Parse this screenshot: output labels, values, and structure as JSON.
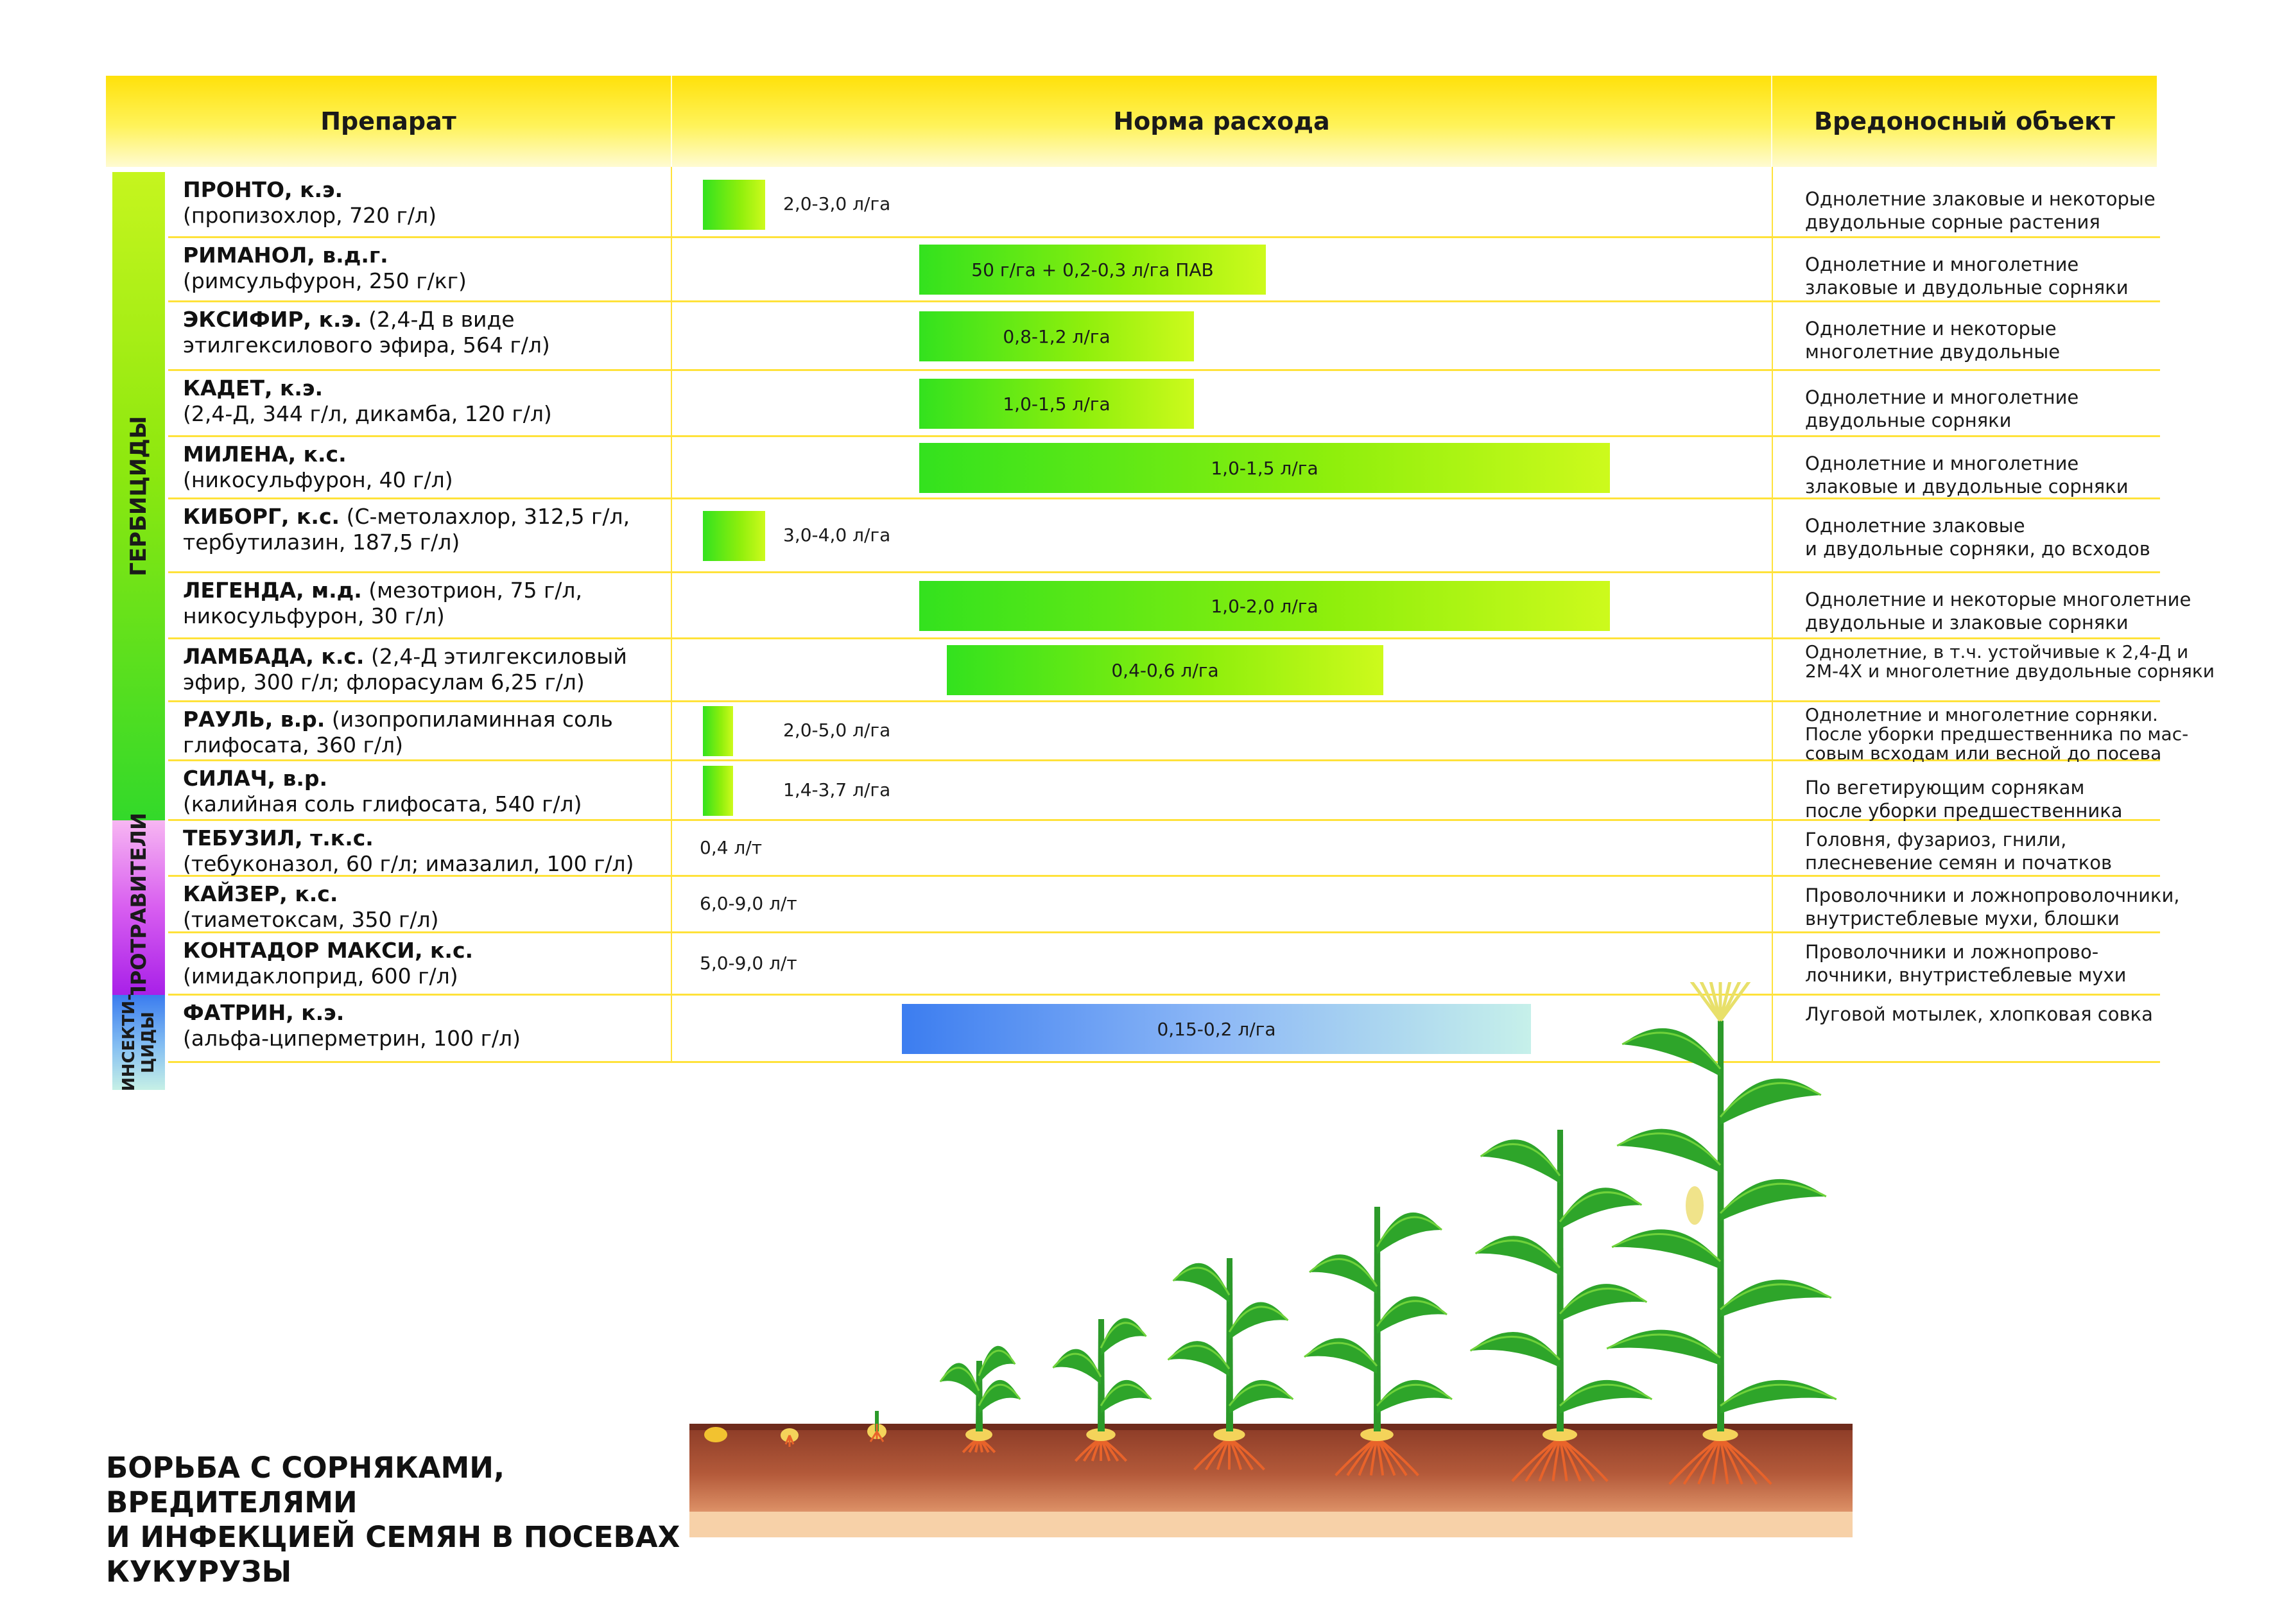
{
  "header": {
    "col_drug": "Препарат",
    "col_rate": "Норма расхода",
    "col_target": "Вредоносный объект"
  },
  "categories": {
    "herbicides": "ГЕРБИЦИДЫ",
    "seed_treatments": "ПРОТРАВИТЕЛИ",
    "insecticides_line1": "ИНСЕКТИ-",
    "insecticides_line2": "ЦИДЫ"
  },
  "colors": {
    "header_yellow": "#ffe10a",
    "herbicides": "#8ee80f",
    "seed_treatments": "#c040f0",
    "insecticides": "#4a8ef2",
    "grid": "#ffe23a"
  },
  "rows": [
    {
      "name": "ПРОНТО, к.э.",
      "detail": "",
      "line2": "(пропизохлор, 720 г/л)",
      "rate": "2,0-3,0 л/га",
      "rate_min": 2.0,
      "rate_max": 3.0,
      "target": [
        "Однолетние злаковые и некоторые",
        "двудольные сорные растения"
      ]
    },
    {
      "name": "РИМАНОЛ, в.д.г.",
      "detail": "",
      "line2": "(римсульфурон, 250 г/кг)",
      "rate": "50 г/га + 0,2-0,3 л/га ПАВ",
      "target": [
        "Однолетние и многолетние",
        "злаковые и двудольные сорняки"
      ]
    },
    {
      "name": "ЭКСИФИР, к.э.",
      "detail": " (2,4-Д в виде",
      "line2": "этилгексилового эфира, 564 г/л)",
      "rate": "0,8-1,2 л/га",
      "rate_min": 0.8,
      "rate_max": 1.2,
      "target": [
        "Однолетние и некоторые",
        "многолетние двудольные"
      ]
    },
    {
      "name": "КАДЕТ, к.э.",
      "detail": "",
      "line2": "(2,4-Д, 344 г/л, дикамба, 120 г/л)",
      "rate": "1,0-1,5 л/га",
      "rate_min": 1.0,
      "rate_max": 1.5,
      "target": [
        "Однолетние и многолетние",
        "двудольные сорняки"
      ]
    },
    {
      "name": "МИЛЕНА, к.с.",
      "detail": "",
      "line2": "(никосульфурон, 40 г/л)",
      "rate": "1,0-1,5 л/га",
      "rate_min": 1.0,
      "rate_max": 1.5,
      "target": [
        "Однолетние и многолетние",
        "злаковые и двудольные сорняки"
      ]
    },
    {
      "name": "КИБОРГ, к.с.",
      "detail": " (С-метолахлор, 312,5 г/л,",
      "line2": "тербутилазин, 187,5 г/л)",
      "rate": "3,0-4,0 л/га",
      "rate_min": 3.0,
      "rate_max": 4.0,
      "target": [
        "Однолетние злаковые",
        "и двудольные сорняки, до всходов"
      ]
    },
    {
      "name": "ЛЕГЕНДА, м.д.",
      "detail": " (мезотрион, 75 г/л,",
      "line2": "никосульфурон, 30 г/л)",
      "rate": "1,0-2,0 л/га",
      "rate_min": 1.0,
      "rate_max": 2.0,
      "target": [
        "Однолетние и некоторые многолетние",
        "двудольные и злаковые сорняки"
      ]
    },
    {
      "name": "ЛАМБАДА, к.с.",
      "detail": " (2,4-Д этилгексиловый",
      "line2": "эфир, 300 г/л; флорасулам 6,25 г/л)",
      "rate": "0,4-0,6 л/га",
      "rate_min": 0.4,
      "rate_max": 0.6,
      "target": [
        "Однолетние, в т.ч. устойчивые к  2,4-Д и",
        "2М-4Х и многолетние двудольные сорняки"
      ]
    },
    {
      "name": "РАУЛЬ, в.р.",
      "detail": " (изопропиламинная соль",
      "line2": "глифосата, 360 г/л)",
      "rate": "2,0-5,0 л/га",
      "rate_min": 2.0,
      "rate_max": 5.0,
      "target": [
        "Однолетние и многолетние сорняки.",
        "После уборки предшественника по мас-",
        "совым всходам или весной до посева"
      ]
    },
    {
      "name": "СИЛАЧ, в.р.",
      "detail": "",
      "line2": "(калийная соль  глифосата, 540 г/л)",
      "rate": "1,4-3,7 л/га",
      "rate_min": 1.4,
      "rate_max": 3.7,
      "target": [
        "По вегетирующим сорнякам",
        "после уборки предшественника"
      ]
    },
    {
      "name": "ТЕБУЗИЛ, т.к.с.",
      "detail": "",
      "line2": "(тебуконазол, 60 г/л; имазалил, 100 г/л)",
      "rate": "0,4 л/т",
      "rate_min": 0.4,
      "rate_max": 0.4,
      "target": [
        "Головня, фузариоз, гнили,",
        "плесневение семян и початков"
      ]
    },
    {
      "name": "КАЙЗЕР, к.с.",
      "detail": "",
      "line2": "(тиаметоксам, 350 г/л)",
      "rate": "6,0-9,0 л/т",
      "rate_min": 6.0,
      "rate_max": 9.0,
      "target": [
        "Проволочники и ложнопроволочники,",
        "внутристеблевые мухи, блошки"
      ]
    },
    {
      "name": "КОНТАДОР МАКСИ, к.с.",
      "detail": "",
      "line2": "(имидаклоприд, 600 г/л)",
      "rate": "5,0-9,0 л/т",
      "rate_min": 5.0,
      "rate_max": 9.0,
      "target": [
        "Проволочники и ложнопрово-",
        "лочники, внутристеблевые мухи"
      ]
    },
    {
      "name": "ФАТРИН, к.э.",
      "detail": "",
      "line2": "(альфа-циперметрин, 100 г/л)",
      "rate": "0,15-0,2 л/га",
      "rate_min": 0.15,
      "rate_max": 0.2,
      "target": [
        "Луговой мотылек, хлопковая совка"
      ]
    }
  ],
  "title": [
    "БОРЬБА С СОРНЯКАМИ, ВРЕДИТЕЛЯМИ",
    "И ИНФЕКЦИЕЙ СЕМЯН В ПОСЕВАХ",
    "КУКУРУЗЫ"
  ],
  "illustration": {
    "subject": "corn-growth-stages-icon"
  }
}
